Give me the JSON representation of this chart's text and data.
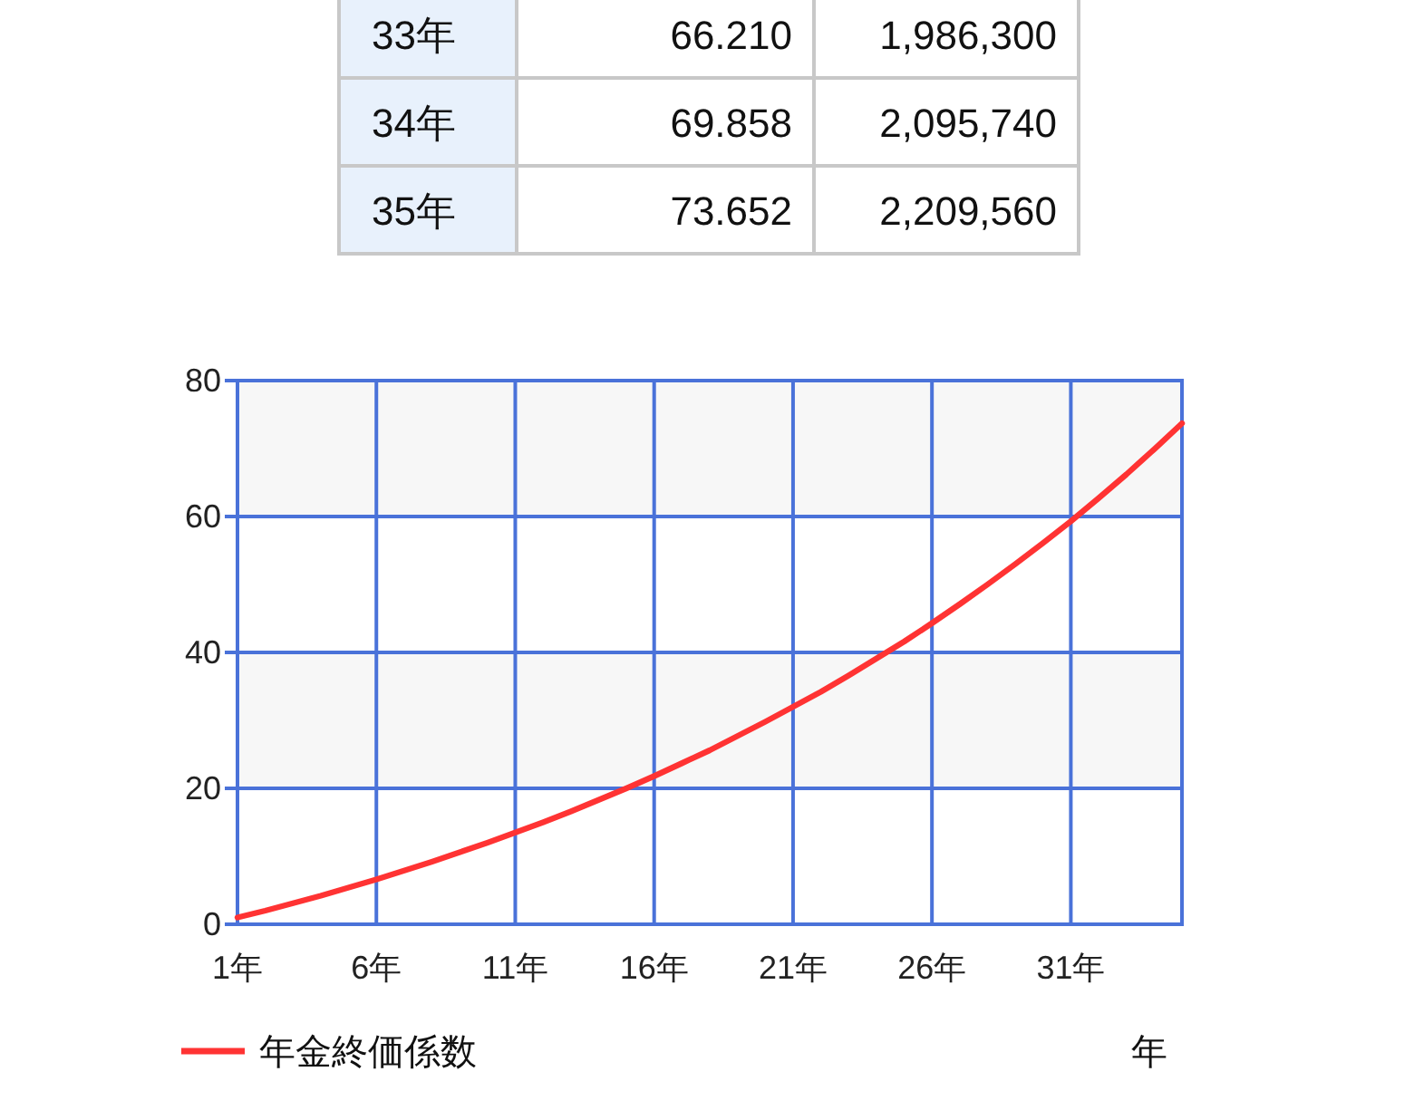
{
  "chart_data": {
    "type": "line",
    "categories": [
      "1年",
      null,
      null,
      null,
      null,
      "6年",
      null,
      null,
      null,
      null,
      "11年",
      null,
      null,
      null,
      null,
      "16年",
      null,
      null,
      null,
      null,
      "21年",
      null,
      null,
      null,
      null,
      "26年",
      null,
      null,
      null,
      null,
      "31年",
      null,
      null,
      null,
      null
    ],
    "series": [
      {
        "name": "年金終価係数",
        "color": "#ff3333",
        "values": [
          1,
          2,
          3.1,
          4.2,
          5.4,
          6.6,
          7.9,
          9.2,
          10.6,
          12,
          13.5,
          15,
          16.6,
          18.3,
          20,
          21.8,
          23.7,
          25.6,
          27.7,
          29.8,
          32,
          34.2,
          36.6,
          39.1,
          41.6,
          44.3,
          47.1,
          50,
          53,
          56.1,
          59.3,
          62.7,
          66.2,
          69.9,
          73.7
        ]
      }
    ],
    "xlabel": "年",
    "ylim": [
      0,
      80
    ],
    "yticks": [
      0,
      20,
      40,
      60,
      80
    ],
    "grid": true,
    "legend": "bottom left",
    "bands": [
      {
        "axis": "y",
        "from": 20,
        "to": 40,
        "color": "#f7f7f7"
      },
      {
        "axis": "y",
        "from": 60,
        "to": 80,
        "color": "#f7f7f7"
      }
    ],
    "annotations": [
      "33年",
      "66.210",
      "1,986,300",
      "34年",
      "69.858",
      "2,095,740",
      "35年",
      "73.652",
      "2,209,560"
    ]
  }
}
